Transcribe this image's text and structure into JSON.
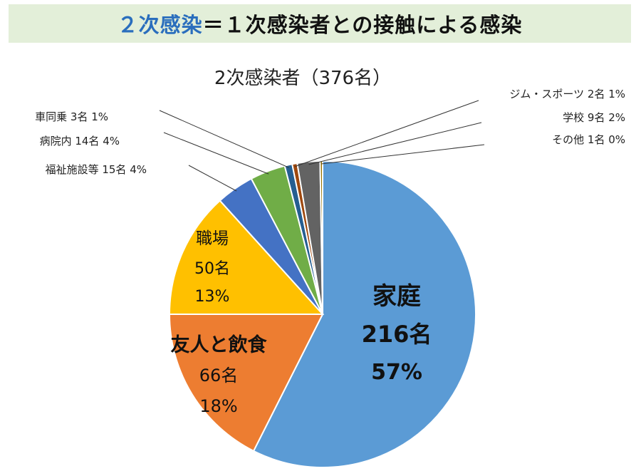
{
  "header": {
    "highlight": "２次感染",
    "rest": "＝１次感染者との接触による感染",
    "bg_color": "#e3efd9",
    "highlight_color": "#2a6ebd"
  },
  "chart_data": {
    "type": "pie",
    "title": "2次感染者（376名）",
    "slices": [
      {
        "label": "家庭",
        "count": "216名",
        "percent": "57%",
        "value": 216,
        "color": "#5b9bd5"
      },
      {
        "label": "友人と飲食",
        "count": "66名",
        "percent": "18%",
        "value": 66,
        "color": "#ed7d31"
      },
      {
        "label": "職場",
        "count": "50名",
        "percent": "13%",
        "value": 50,
        "color": "#ffc000"
      },
      {
        "label": "福祉施設等",
        "count": "15名",
        "percent": "4%",
        "value": 15,
        "color": "#4472c4"
      },
      {
        "label": "病院内",
        "count": "14名",
        "percent": "4%",
        "value": 14,
        "color": "#70ad47"
      },
      {
        "label": "車同乗",
        "count": "3名",
        "percent": "1%",
        "value": 3,
        "color": "#255e91"
      },
      {
        "label": "ジム・スポーツ",
        "count": "2名",
        "percent": "1%",
        "value": 2,
        "color": "#9e480e"
      },
      {
        "label": "学校",
        "count": "9名",
        "percent": "2%",
        "value": 9,
        "color": "#636363"
      },
      {
        "label": "その他",
        "count": "1名",
        "percent": "0%",
        "value": 1,
        "color": "#997300"
      }
    ]
  }
}
